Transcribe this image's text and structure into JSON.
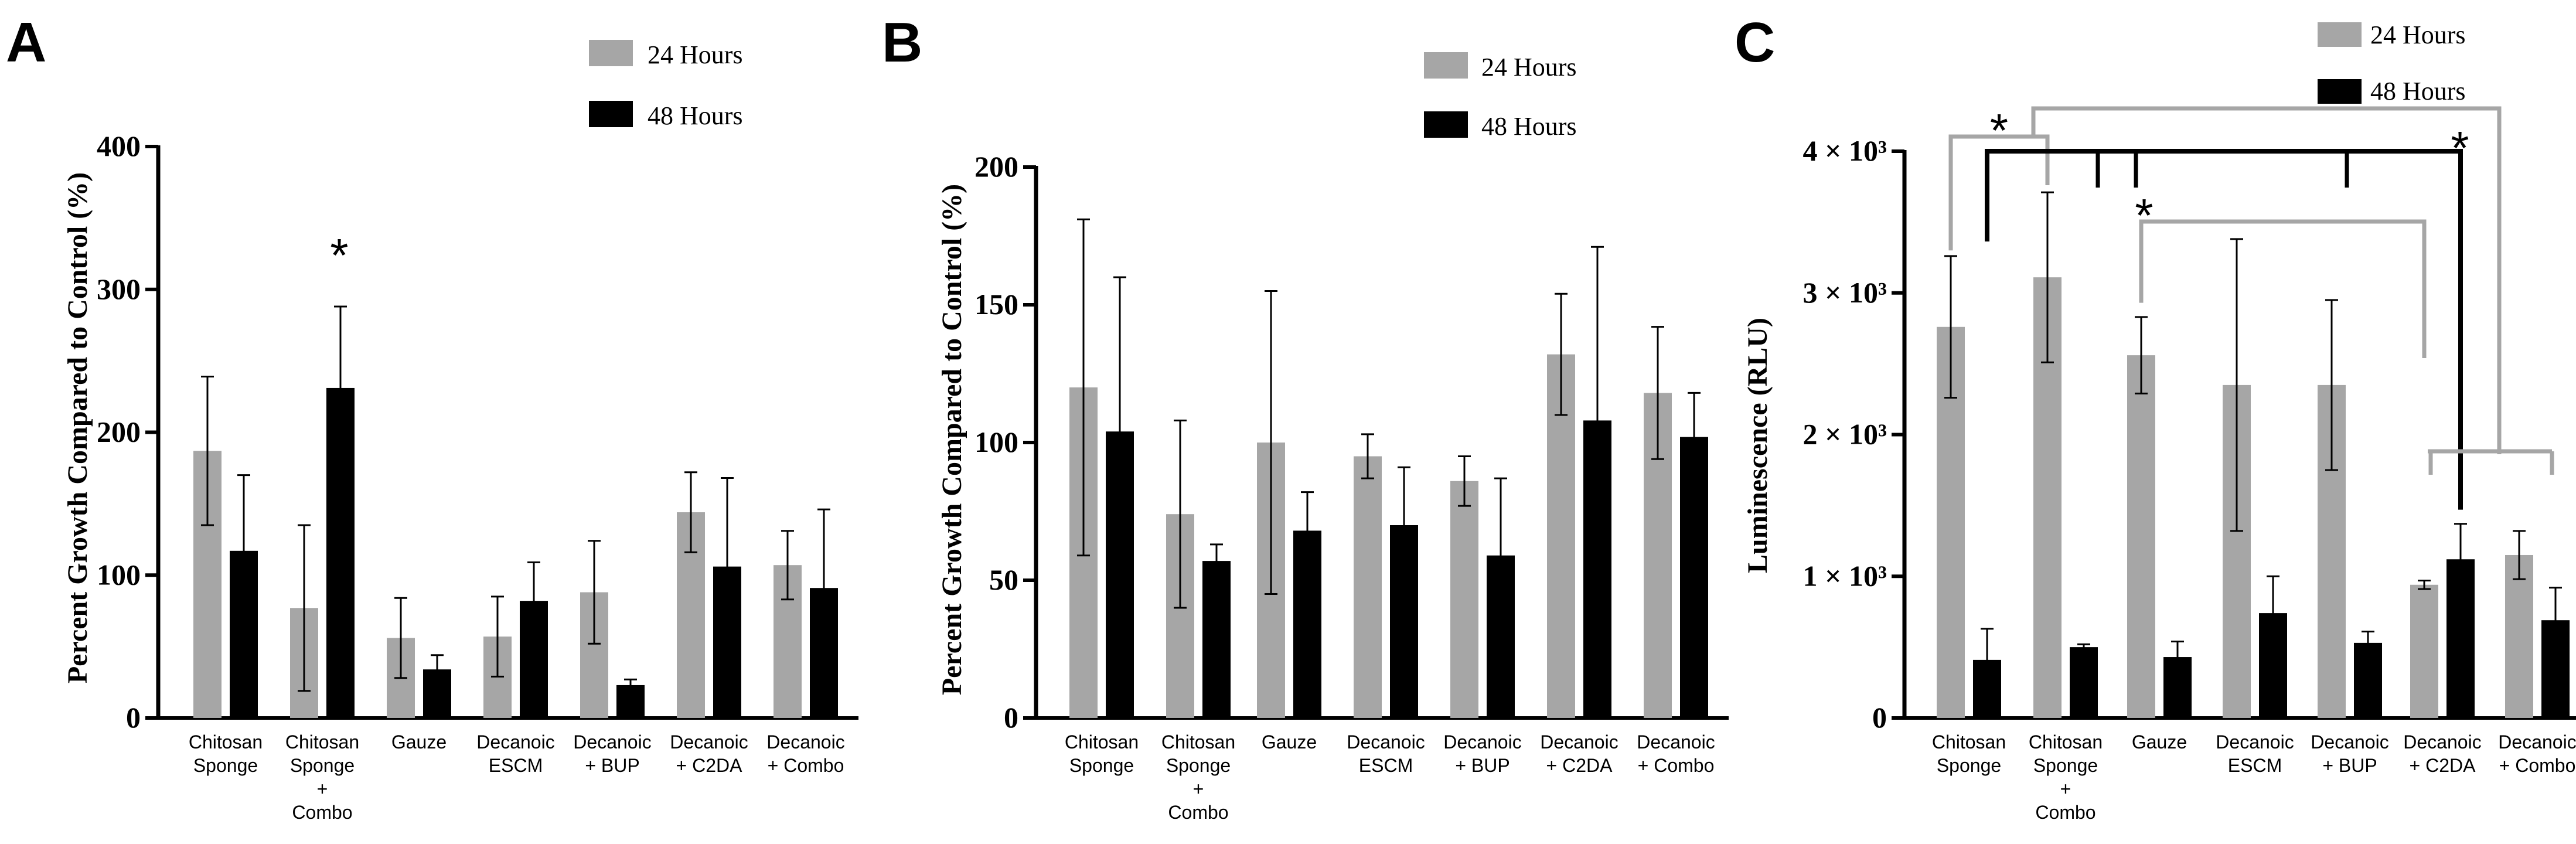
{
  "colors": {
    "h24": "#a6a6a6",
    "h48": "#000000",
    "sig_gray": "#a6a6a6",
    "sig_black": "#000000"
  },
  "chart_data": [
    {
      "panel": "A",
      "type": "bar",
      "ylabel": "Percent Growth Compared to Control (%)",
      "ylim": [
        0,
        400
      ],
      "yticks": [
        "0",
        "100",
        "200",
        "300",
        "400"
      ],
      "grid": false,
      "legend_position": "top-center",
      "categories": [
        [
          "Chitosan",
          "Sponge"
        ],
        [
          "Chitosan",
          "Sponge",
          "+",
          "Combo"
        ],
        [
          "Gauze"
        ],
        [
          "Decanoic",
          "ESCM"
        ],
        [
          "Decanoic",
          "+ BUP"
        ],
        [
          "Decanoic",
          "+ C2DA"
        ],
        [
          "Decanoic",
          "+ Combo"
        ]
      ],
      "series": [
        {
          "name": "24 Hours",
          "values": [
            187,
            77,
            56,
            57,
            88,
            144,
            107
          ],
          "errors": [
            52,
            58,
            28,
            28,
            36,
            28,
            24
          ]
        },
        {
          "name": "48 Hours",
          "values": [
            117,
            231,
            34,
            82,
            23,
            106,
            91
          ],
          "errors": [
            53,
            57,
            10,
            27,
            4,
            62,
            55
          ]
        }
      ],
      "annotations": [
        {
          "text": "*",
          "category_index": 1,
          "y": 325
        }
      ]
    },
    {
      "panel": "B",
      "type": "bar",
      "ylabel": "Percent Growth Compared to Control (%)",
      "ylim": [
        0,
        200
      ],
      "yticks": [
        "0",
        "50",
        "100",
        "150",
        "200"
      ],
      "grid": false,
      "legend_position": "top-center",
      "categories": [
        [
          "Chitosan",
          "Sponge"
        ],
        [
          "Chitosan",
          "Sponge",
          "+",
          "Combo"
        ],
        [
          "Gauze"
        ],
        [
          "Decanoic",
          "ESCM"
        ],
        [
          "Decanoic",
          "+ BUP"
        ],
        [
          "Decanoic",
          "+ C2DA"
        ],
        [
          "Decanoic",
          "+ Combo"
        ]
      ],
      "series": [
        {
          "name": "24 Hours",
          "values": [
            120,
            74,
            100,
            95,
            86,
            132,
            118
          ],
          "errors": [
            61,
            34,
            55,
            8,
            9,
            22,
            24
          ]
        },
        {
          "name": "48 Hours",
          "values": [
            104,
            57,
            68,
            70,
            59,
            108,
            102
          ],
          "errors": [
            56,
            6,
            14,
            21,
            28,
            63,
            16
          ]
        }
      ]
    },
    {
      "panel": "C",
      "type": "bar",
      "ylabel": "Luminescence (RLU)",
      "ylim": [
        0,
        4000
      ],
      "yticks": [
        "0",
        "1 × 10³",
        "2 × 10³",
        "3 × 10³",
        "4 × 10³"
      ],
      "grid": false,
      "legend_position": "top-right",
      "categories": [
        [
          "Chitosan",
          "Sponge"
        ],
        [
          "Chitosan",
          "Sponge",
          "+",
          "Combo"
        ],
        [
          "Gauze"
        ],
        [
          "Decanoic",
          "ESCM"
        ],
        [
          "Decanoic",
          "+ BUP"
        ],
        [
          "Decanoic",
          "+ C2DA"
        ],
        [
          "Decanoic",
          "+ Combo"
        ]
      ],
      "series": [
        {
          "name": "24 Hours",
          "values": [
            2760,
            3110,
            2560,
            2350,
            2350,
            940,
            1150
          ],
          "errors": [
            500,
            600,
            270,
            1030,
            600,
            30,
            170
          ]
        },
        {
          "name": "48 Hours",
          "values": [
            410,
            500,
            430,
            740,
            530,
            1120,
            690
          ],
          "errors": [
            220,
            20,
            110,
            260,
            80,
            250,
            230
          ]
        }
      ],
      "significance": [
        {
          "color": "gray",
          "text": "*",
          "from": [
            0
          ],
          "to": [
            1
          ]
        },
        {
          "color": "black",
          "text": "*",
          "from": [
            0,
            1,
            2,
            4
          ],
          "to": [
            5
          ]
        },
        {
          "color": "gray",
          "text": "*",
          "from": [
            2
          ],
          "to": [
            5
          ]
        },
        {
          "color": "gray",
          "text": "*",
          "from": [
            1
          ],
          "to": [
            5,
            6
          ]
        }
      ]
    }
  ],
  "panels": [
    {
      "letter": "A",
      "legend": [
        "24 Hours",
        "48 Hours"
      ]
    },
    {
      "letter": "B",
      "legend": [
        "24 Hours",
        "48 Hours"
      ]
    },
    {
      "letter": "C",
      "legend": [
        "24 Hours",
        "48 Hours"
      ]
    }
  ]
}
